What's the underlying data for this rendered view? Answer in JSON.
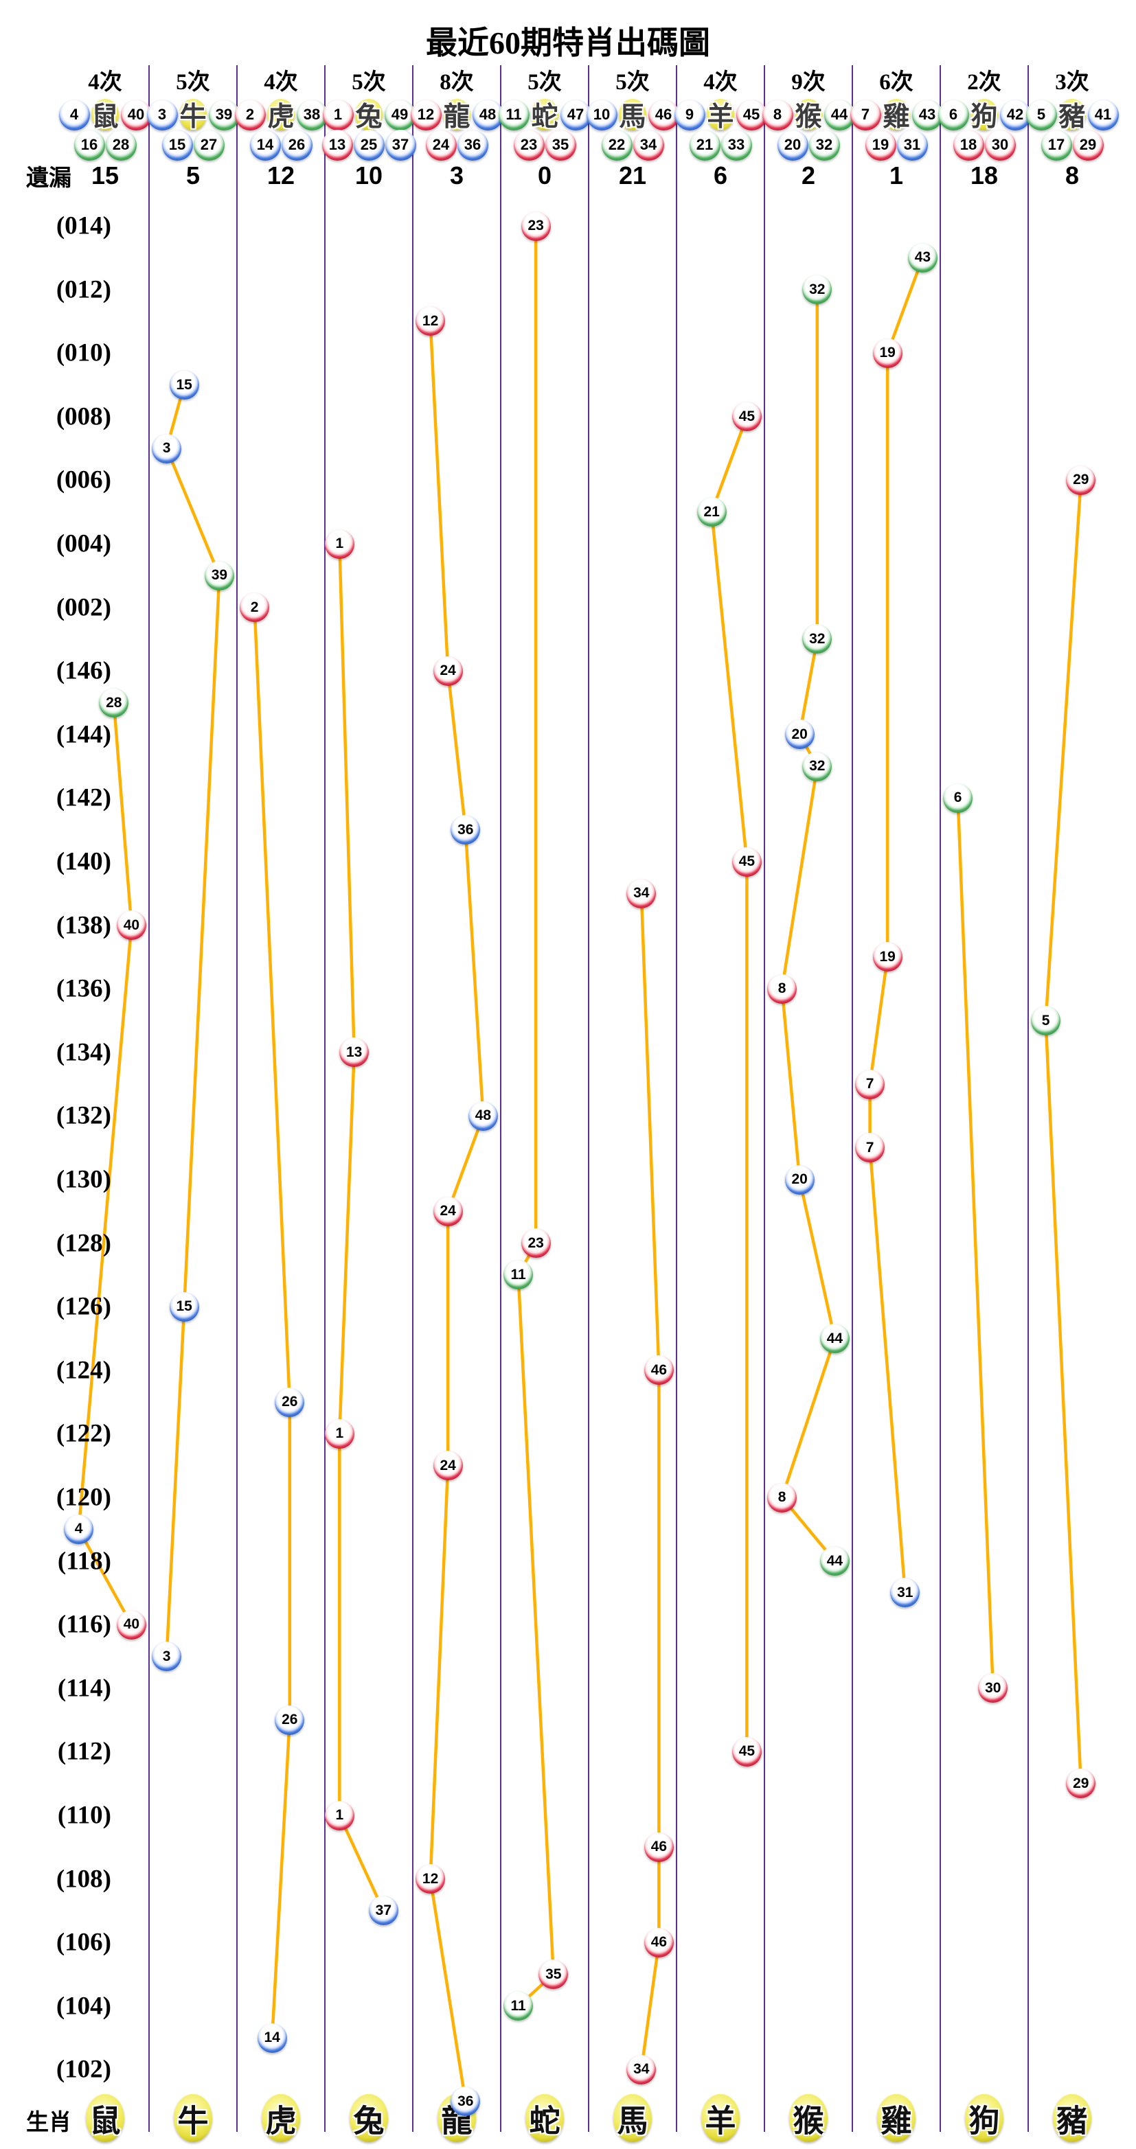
{
  "title": "最近60期特肖出碼圖",
  "labels": {
    "missing_row": "遺漏",
    "zodiac_row": "生肖"
  },
  "columns": [
    {
      "zodiac": "鼠",
      "count": "4次",
      "missing": "15",
      "numbers": [
        4,
        16,
        28,
        40
      ]
    },
    {
      "zodiac": "牛",
      "count": "5次",
      "missing": "5",
      "numbers": [
        3,
        15,
        27,
        39
      ]
    },
    {
      "zodiac": "虎",
      "count": "4次",
      "missing": "12",
      "numbers": [
        2,
        14,
        26,
        38
      ]
    },
    {
      "zodiac": "兔",
      "count": "5次",
      "missing": "10",
      "numbers": [
        1,
        13,
        25,
        37,
        49
      ]
    },
    {
      "zodiac": "龍",
      "count": "8次",
      "missing": "3",
      "numbers": [
        12,
        24,
        36,
        48
      ]
    },
    {
      "zodiac": "蛇",
      "count": "5次",
      "missing": "0",
      "numbers": [
        11,
        23,
        35,
        47
      ]
    },
    {
      "zodiac": "馬",
      "count": "5次",
      "missing": "21",
      "numbers": [
        10,
        22,
        34,
        46
      ]
    },
    {
      "zodiac": "羊",
      "count": "4次",
      "missing": "6",
      "numbers": [
        9,
        21,
        33,
        45
      ]
    },
    {
      "zodiac": "猴",
      "count": "9次",
      "missing": "2",
      "numbers": [
        8,
        20,
        32,
        44
      ]
    },
    {
      "zodiac": "雞",
      "count": "6次",
      "missing": "1",
      "numbers": [
        7,
        19,
        31,
        43
      ]
    },
    {
      "zodiac": "狗",
      "count": "2次",
      "missing": "18",
      "numbers": [
        6,
        18,
        30,
        42
      ]
    },
    {
      "zodiac": "豬",
      "count": "3次",
      "missing": "8",
      "numbers": [
        5,
        17,
        29,
        41
      ]
    }
  ],
  "ball_colors": {
    "red": [
      1,
      2,
      7,
      8,
      12,
      13,
      18,
      19,
      23,
      24,
      29,
      30,
      34,
      35,
      40,
      45,
      46
    ],
    "blue": [
      3,
      4,
      9,
      10,
      14,
      15,
      20,
      25,
      26,
      31,
      36,
      37,
      41,
      42,
      47,
      48
    ],
    "green": [
      5,
      6,
      11,
      16,
      17,
      21,
      22,
      27,
      28,
      32,
      33,
      38,
      39,
      43,
      44,
      49
    ]
  },
  "chart_data": {
    "type": "scatter",
    "x_categories_zodiac": [
      "鼠",
      "牛",
      "虎",
      "兔",
      "龍",
      "蛇",
      "馬",
      "羊",
      "猴",
      "雞",
      "狗",
      "豬"
    ],
    "row_periods": [
      "014",
      "013",
      "012",
      "011",
      "010",
      "009",
      "008",
      "007",
      "006",
      "005",
      "004",
      "003",
      "002",
      "001",
      "146",
      "145",
      "144",
      "143",
      "142",
      "141",
      "140",
      "139",
      "138",
      "137",
      "136",
      "135",
      "134",
      "133",
      "132",
      "131",
      "130",
      "129",
      "128",
      "127",
      "126",
      "125",
      "124",
      "123",
      "122",
      "121",
      "120",
      "119",
      "118",
      "117",
      "116",
      "115",
      "114",
      "113",
      "112",
      "111",
      "110",
      "109",
      "108",
      "107",
      "106",
      "105",
      "104",
      "103",
      "102",
      "101"
    ],
    "period_axis_labels": [
      "(014)",
      "(012)",
      "(010)",
      "(008)",
      "(006)",
      "(004)",
      "(002)",
      "(146)",
      "(144)",
      "(142)",
      "(140)",
      "(138)",
      "(136)",
      "(134)",
      "(132)",
      "(130)",
      "(128)",
      "(126)",
      "(124)",
      "(122)",
      "(120)",
      "(118)",
      "(116)",
      "(114)",
      "(112)",
      "(110)",
      "(108)",
      "(106)",
      "(104)",
      "(102)"
    ],
    "draws": [
      {
        "period": "014",
        "zodiac": "蛇",
        "number": 23
      },
      {
        "period": "013",
        "zodiac": "雞",
        "number": 43
      },
      {
        "period": "012",
        "zodiac": "猴",
        "number": 32
      },
      {
        "period": "011",
        "zodiac": "龍",
        "number": 12
      },
      {
        "period": "010",
        "zodiac": "雞",
        "number": 19
      },
      {
        "period": "009",
        "zodiac": "牛",
        "number": 15
      },
      {
        "period": "008",
        "zodiac": "羊",
        "number": 45
      },
      {
        "period": "007",
        "zodiac": "牛",
        "number": 3
      },
      {
        "period": "006",
        "zodiac": "豬",
        "number": 29
      },
      {
        "period": "005",
        "zodiac": "羊",
        "number": 21
      },
      {
        "period": "004",
        "zodiac": "兔",
        "number": 1
      },
      {
        "period": "003",
        "zodiac": "牛",
        "number": 39
      },
      {
        "period": "002",
        "zodiac": "虎",
        "number": 2
      },
      {
        "period": "001",
        "zodiac": "猴",
        "number": 32
      },
      {
        "period": "146",
        "zodiac": "龍",
        "number": 24
      },
      {
        "period": "145",
        "zodiac": "鼠",
        "number": 28
      },
      {
        "period": "144",
        "zodiac": "猴",
        "number": 20
      },
      {
        "period": "143",
        "zodiac": "猴",
        "number": 32
      },
      {
        "period": "142",
        "zodiac": "狗",
        "number": 6
      },
      {
        "period": "141",
        "zodiac": "龍",
        "number": 36
      },
      {
        "period": "140",
        "zodiac": "羊",
        "number": 45
      },
      {
        "period": "139",
        "zodiac": "馬",
        "number": 34
      },
      {
        "period": "138",
        "zodiac": "鼠",
        "number": 40
      },
      {
        "period": "137",
        "zodiac": "雞",
        "number": 19
      },
      {
        "period": "136",
        "zodiac": "猴",
        "number": 8
      },
      {
        "period": "135",
        "zodiac": "豬",
        "number": 5
      },
      {
        "period": "134",
        "zodiac": "兔",
        "number": 13
      },
      {
        "period": "133",
        "zodiac": "雞",
        "number": 7
      },
      {
        "period": "132",
        "zodiac": "龍",
        "number": 48
      },
      {
        "period": "131",
        "zodiac": "雞",
        "number": 7
      },
      {
        "period": "130",
        "zodiac": "猴",
        "number": 20
      },
      {
        "period": "129",
        "zodiac": "龍",
        "number": 24
      },
      {
        "period": "128",
        "zodiac": "蛇",
        "number": 23
      },
      {
        "period": "127",
        "zodiac": "蛇",
        "number": 11
      },
      {
        "period": "126",
        "zodiac": "牛",
        "number": 15
      },
      {
        "period": "125",
        "zodiac": "猴",
        "number": 44
      },
      {
        "period": "124",
        "zodiac": "馬",
        "number": 46
      },
      {
        "period": "123",
        "zodiac": "虎",
        "number": 26
      },
      {
        "period": "122",
        "zodiac": "兔",
        "number": 1
      },
      {
        "period": "121",
        "zodiac": "龍",
        "number": 24
      },
      {
        "period": "120",
        "zodiac": "猴",
        "number": 8
      },
      {
        "period": "119",
        "zodiac": "鼠",
        "number": 4
      },
      {
        "period": "118",
        "zodiac": "猴",
        "number": 44
      },
      {
        "period": "117",
        "zodiac": "雞",
        "number": 31
      },
      {
        "period": "116",
        "zodiac": "鼠",
        "number": 40
      },
      {
        "period": "115",
        "zodiac": "牛",
        "number": 3
      },
      {
        "period": "114",
        "zodiac": "狗",
        "number": 30
      },
      {
        "period": "113",
        "zodiac": "虎",
        "number": 26
      },
      {
        "period": "112",
        "zodiac": "羊",
        "number": 45
      },
      {
        "period": "111",
        "zodiac": "豬",
        "number": 29
      },
      {
        "period": "110",
        "zodiac": "兔",
        "number": 1
      },
      {
        "period": "109",
        "zodiac": "馬",
        "number": 46
      },
      {
        "period": "108",
        "zodiac": "龍",
        "number": 12
      },
      {
        "period": "107",
        "zodiac": "兔",
        "number": 37
      },
      {
        "period": "106",
        "zodiac": "馬",
        "number": 46
      },
      {
        "period": "105",
        "zodiac": "蛇",
        "number": 35
      },
      {
        "period": "104",
        "zodiac": "蛇",
        "number": 11
      },
      {
        "period": "103",
        "zodiac": "虎",
        "number": 14
      },
      {
        "period": "102",
        "zodiac": "馬",
        "number": 34
      },
      {
        "period": "101",
        "zodiac": "龍",
        "number": 36
      }
    ]
  },
  "style_colors": {
    "separator": "#5E2F96",
    "trend_line": "#FFB103",
    "ball_red": "#C11030",
    "ball_blue": "#1F5ACE",
    "ball_green": "#2B9C41",
    "ball_yellow": "#E4DC3A"
  }
}
